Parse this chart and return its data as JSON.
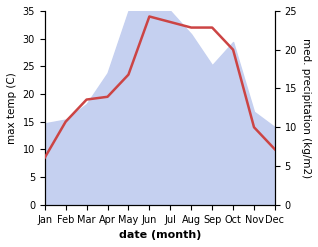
{
  "months": [
    1,
    2,
    3,
    4,
    5,
    6,
    7,
    8,
    9,
    10,
    11,
    12
  ],
  "month_labels": [
    "Jan",
    "Feb",
    "Mar",
    "Apr",
    "May",
    "Jun",
    "Jul",
    "Aug",
    "Sep",
    "Oct",
    "Nov",
    "Dec"
  ],
  "temp_max": [
    8.5,
    15.0,
    19.0,
    19.5,
    23.5,
    34.0,
    33.0,
    32.0,
    32.0,
    28.0,
    14.0,
    10.0
  ],
  "precip": [
    10.5,
    11.0,
    13.0,
    17.0,
    25.0,
    25.0,
    25.0,
    22.0,
    18.0,
    21.0,
    12.0,
    10.0
  ],
  "temp_color": "#cc4444",
  "precip_fill_color": "#c5d0f0",
  "temp_ylim": [
    0,
    35
  ],
  "precip_ylim": [
    0,
    25
  ],
  "temp_yticks": [
    0,
    5,
    10,
    15,
    20,
    25,
    30,
    35
  ],
  "precip_yticks": [
    0,
    5,
    10,
    15,
    20,
    25
  ],
  "xlabel": "date (month)",
  "ylabel_left": "max temp (C)",
  "ylabel_right": "med. precipitation (kg/m2)",
  "line_width": 1.8,
  "background_color": "#ffffff",
  "tick_fontsize": 7,
  "label_fontsize": 7.5,
  "xlabel_fontsize": 8
}
